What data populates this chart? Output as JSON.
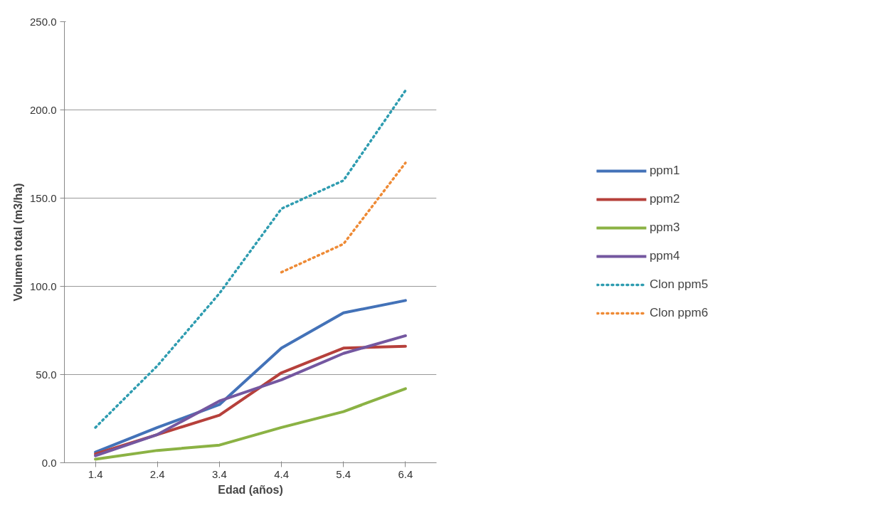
{
  "chart_data": {
    "type": "line",
    "xlabel": "Edad (años)",
    "ylabel": "Volumen total (m3/ha)",
    "categories": [
      "1.4",
      "2.4",
      "3.4",
      "4.4",
      "5.4",
      "6.4"
    ],
    "ylim": [
      0,
      250
    ],
    "yticks": [
      {
        "value": 0,
        "label": "0.0"
      },
      {
        "value": 50,
        "label": "50.0"
      },
      {
        "value": 100,
        "label": "100.0"
      },
      {
        "value": 150,
        "label": "150.0"
      },
      {
        "value": 200,
        "label": "200.0"
      },
      {
        "value": 250,
        "label": "250.0"
      }
    ],
    "grid": "y",
    "legend": "right",
    "marker": "none",
    "series": [
      {
        "name": "ppm1",
        "color": "#4372b8",
        "line_style": "solid",
        "values": [
          6,
          20,
          33,
          65,
          85,
          92
        ]
      },
      {
        "name": "ppm2",
        "color": "#b6403b",
        "line_style": "solid",
        "values": [
          5,
          16,
          27,
          51,
          65,
          66
        ]
      },
      {
        "name": "ppm3",
        "color": "#8bb244",
        "line_style": "solid",
        "values": [
          2,
          7,
          10,
          20,
          29,
          42
        ]
      },
      {
        "name": "ppm4",
        "color": "#7457a0",
        "line_style": "solid",
        "values": [
          4,
          16,
          35,
          47,
          62,
          72
        ]
      },
      {
        "name": "Clon ppm5",
        "color": "#2e9cb0",
        "line_style": "dotted",
        "values": [
          20,
          55,
          96,
          144,
          160,
          211
        ]
      },
      {
        "name": "Clon ppm6",
        "color": "#ee8a35",
        "line_style": "dotted",
        "values": [
          null,
          null,
          null,
          108,
          124,
          170
        ]
      }
    ]
  }
}
